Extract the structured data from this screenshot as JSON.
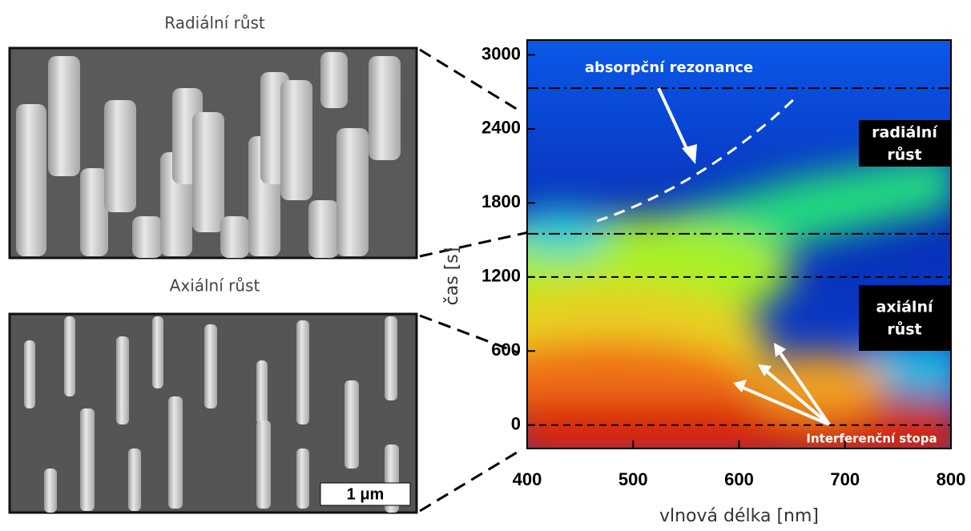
{
  "figure": {
    "top_label": "Radiální růst",
    "bottom_label": "Axiální růst",
    "scale_bar": "1 μm"
  },
  "chart_data": {
    "type": "heatmap",
    "x_label": "vlnová délka [nm]",
    "y_label": "čas [s]",
    "xlim": [
      400,
      800
    ],
    "ylim": [
      -190,
      3120
    ],
    "xticks": [
      400,
      500,
      600,
      700,
      800
    ],
    "yticks": [
      0,
      600,
      1200,
      1800,
      2400,
      3000
    ],
    "markers": [
      {
        "value": 0,
        "style": "dashed"
      },
      {
        "value": 1200,
        "style": "dashed"
      },
      {
        "value": 1550,
        "style": "dashdot"
      },
      {
        "value": 2730,
        "style": "dashdot"
      }
    ],
    "annotations": {
      "resonance": "absorpční rezonance",
      "radial": [
        "radiální",
        "růst"
      ],
      "axial": [
        "axiální",
        "růst"
      ],
      "interference": "Interferenční stopa"
    }
  }
}
